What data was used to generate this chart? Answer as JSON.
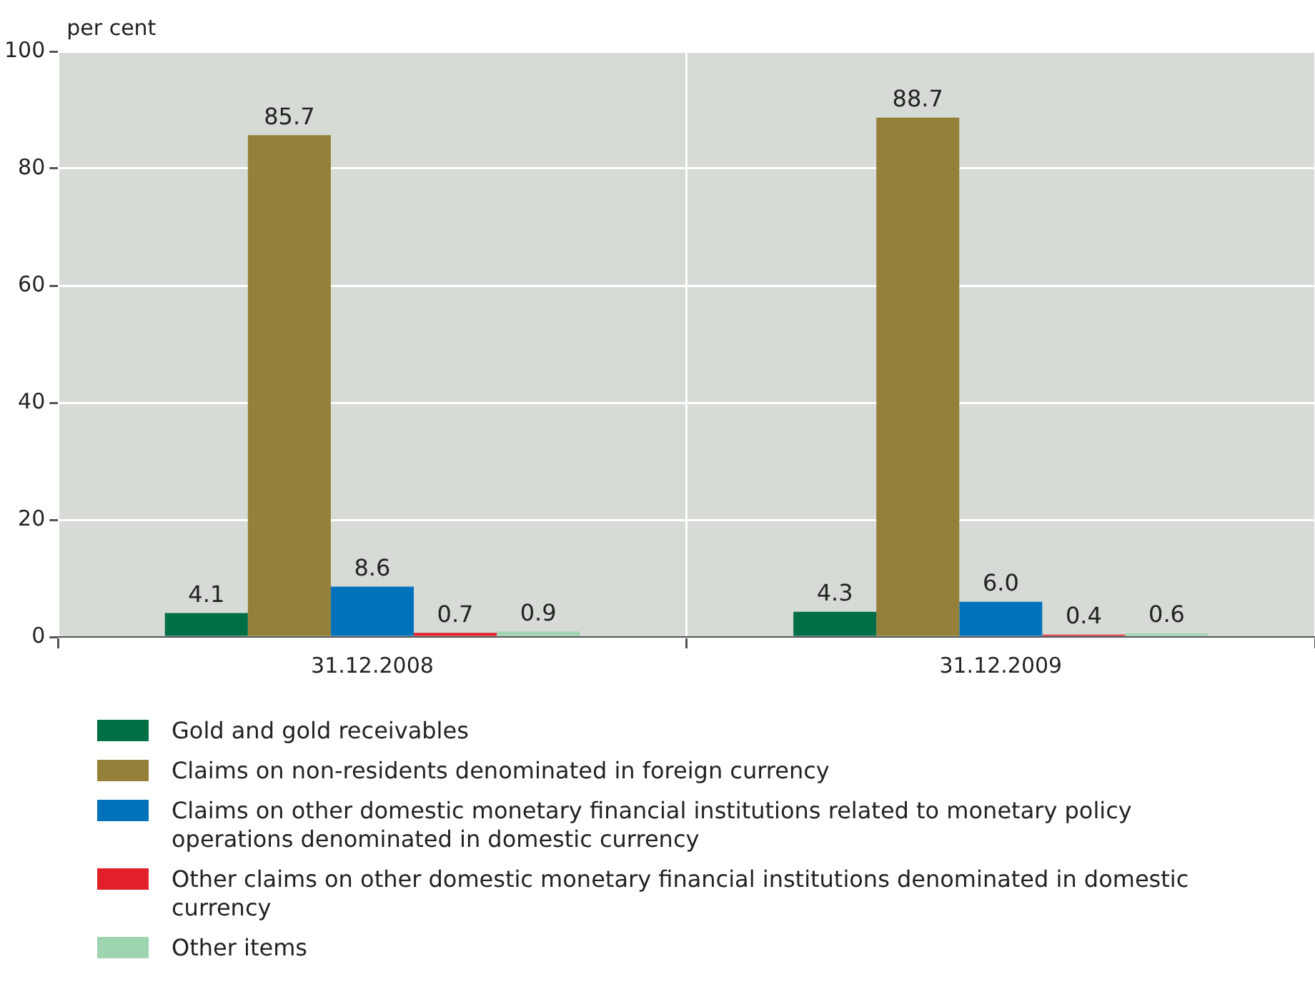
{
  "chart_data": {
    "type": "bar",
    "ylabel": "per cent",
    "categories": [
      "31.12.2008",
      "31.12.2009"
    ],
    "series": [
      {
        "name": "Gold and gold receivables",
        "color": "#006f46",
        "values": [
          4.1,
          4.3
        ]
      },
      {
        "name": "Claims on non-residents denominated in foreign currency",
        "color": "#95803a",
        "values": [
          85.7,
          88.7
        ]
      },
      {
        "name": "Claims on other domestic monetary financial institutions related to monetary policy operations denominated in domestic currency",
        "color": "#0072bc",
        "values": [
          8.6,
          6.0
        ]
      },
      {
        "name": "Other claims on other domestic monetary financial institutions denominated in domestic currency",
        "color": "#e2202a",
        "values": [
          0.7,
          0.4
        ]
      },
      {
        "name": "Other items",
        "color": "#9fd4b0",
        "values": [
          0.9,
          0.6
        ]
      }
    ],
    "value_labels": [
      [
        "4.1",
        "4.3"
      ],
      [
        "85.7",
        "88.7"
      ],
      [
        "8.6",
        "6.0"
      ],
      [
        "0.7",
        "0.4"
      ],
      [
        "0.9",
        "0.6"
      ]
    ],
    "ylim": [
      0,
      100
    ],
    "yticks": [
      0,
      20,
      40,
      60,
      80,
      100
    ],
    "grid": true,
    "legend": "bottom"
  }
}
